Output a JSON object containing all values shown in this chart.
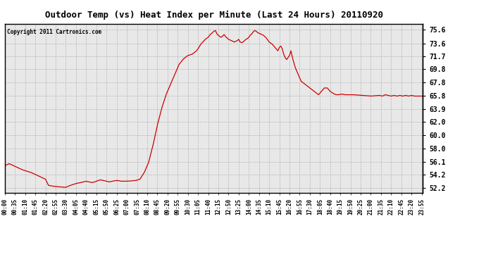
{
  "title": "Outdoor Temp (vs) Heat Index per Minute (Last 24 Hours) 20110920",
  "copyright": "Copyright 2011 Cartronics.com",
  "line_color": "#cc0000",
  "bg_color": "#ffffff",
  "plot_bg_color": "#e8e8e8",
  "grid_color": "#aaaaaa",
  "yticks": [
    52.2,
    54.2,
    56.1,
    58.0,
    60.0,
    62.0,
    63.9,
    65.8,
    67.8,
    69.8,
    71.7,
    73.6,
    75.6
  ],
  "ylim": [
    51.5,
    76.5
  ],
  "xtick_labels": [
    "00:00",
    "00:35",
    "01:10",
    "01:45",
    "02:20",
    "02:55",
    "03:30",
    "04:05",
    "04:40",
    "05:15",
    "05:50",
    "06:25",
    "07:00",
    "07:35",
    "08:10",
    "08:45",
    "09:20",
    "09:55",
    "10:30",
    "11:05",
    "11:40",
    "12:15",
    "12:50",
    "13:25",
    "14:00",
    "14:35",
    "15:10",
    "15:45",
    "16:20",
    "16:55",
    "17:30",
    "18:05",
    "18:40",
    "19:15",
    "19:50",
    "20:25",
    "21:00",
    "21:35",
    "22:10",
    "22:45",
    "23:20",
    "23:55"
  ],
  "key_points": {
    "00:00": 55.5,
    "00:15": 55.8,
    "00:35": 55.4,
    "01:00": 54.9,
    "01:30": 54.5,
    "02:00": 53.9,
    "02:20": 53.5,
    "02:30": 52.6,
    "02:40": 52.5,
    "03:00": 52.4,
    "03:30": 52.3,
    "03:40": 52.5,
    "04:00": 52.8,
    "04:20": 53.0,
    "04:40": 53.2,
    "05:00": 53.0,
    "05:10": 53.1,
    "05:20": 53.3,
    "05:30": 53.4,
    "05:40": 53.3,
    "05:50": 53.2,
    "06:00": 53.1,
    "06:10": 53.2,
    "06:20": 53.3,
    "06:30": 53.3,
    "06:40": 53.2,
    "07:00": 53.2,
    "07:30": 53.3,
    "07:45": 53.5,
    "08:00": 54.5,
    "08:15": 56.0,
    "08:30": 58.5,
    "08:45": 61.5,
    "09:00": 64.0,
    "09:15": 66.0,
    "09:30": 67.5,
    "09:45": 69.0,
    "10:00": 70.5,
    "10:15": 71.3,
    "10:30": 71.8,
    "10:45": 72.0,
    "11:00": 72.5,
    "11:05": 72.8,
    "11:15": 73.5,
    "11:30": 74.2,
    "11:40": 74.5,
    "11:45": 74.8,
    "11:55": 75.2,
    "12:00": 75.4,
    "12:05": 75.5,
    "12:10": 75.0,
    "12:15": 74.8,
    "12:20": 74.6,
    "12:25": 74.5,
    "12:30": 74.7,
    "12:35": 74.9,
    "12:40": 74.6,
    "12:45": 74.4,
    "12:50": 74.2,
    "13:00": 74.0,
    "13:10": 73.8,
    "13:15": 73.9,
    "13:20": 74.0,
    "13:25": 74.2,
    "13:30": 73.8,
    "13:35": 73.7,
    "13:40": 73.8,
    "13:45": 74.0,
    "13:50": 74.2,
    "13:55": 74.3,
    "14:00": 74.5,
    "14:05": 74.8,
    "14:10": 75.0,
    "14:15": 75.3,
    "14:20": 75.5,
    "14:25": 75.4,
    "14:30": 75.2,
    "14:40": 75.0,
    "14:50": 74.8,
    "15:00": 74.4,
    "15:10": 73.8,
    "15:20": 73.5,
    "15:30": 73.0,
    "15:40": 72.5,
    "15:45": 73.0,
    "15:50": 73.2,
    "15:55": 72.8,
    "16:00": 72.0,
    "16:05": 71.5,
    "16:10": 71.2,
    "16:20": 71.8,
    "16:25": 72.5,
    "16:30": 71.5,
    "16:40": 70.0,
    "16:50": 69.0,
    "17:00": 68.0,
    "17:15": 67.5,
    "17:30": 67.0,
    "17:45": 66.5,
    "18:00": 66.0,
    "18:20": 67.0,
    "18:30": 67.0,
    "18:40": 66.5,
    "18:50": 66.2,
    "19:00": 66.0,
    "19:10": 66.0,
    "19:20": 66.1,
    "19:30": 66.0,
    "20:00": 66.0,
    "20:30": 65.9,
    "21:00": 65.8,
    "21:30": 65.9,
    "21:40": 65.8,
    "21:50": 66.0,
    "22:00": 65.9,
    "22:10": 65.8,
    "22:20": 65.9,
    "22:30": 65.8,
    "22:40": 65.9,
    "22:50": 65.8,
    "23:00": 65.9,
    "23:10": 65.8,
    "23:20": 65.9,
    "23:30": 65.8,
    "23:40": 65.8,
    "23:55": 65.8
  }
}
